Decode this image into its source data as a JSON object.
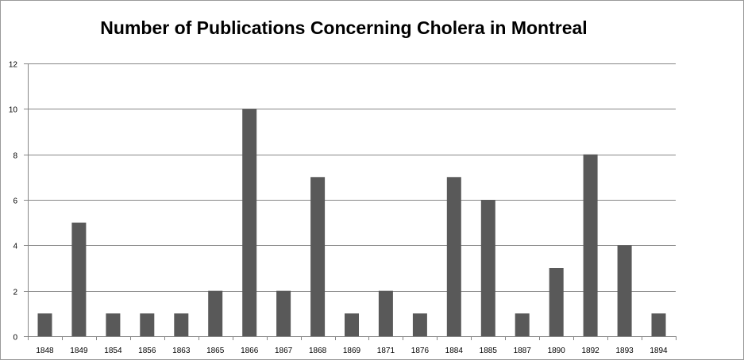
{
  "chart_data": {
    "type": "bar",
    "title": "Number of Publications Concerning Cholera in Montreal",
    "xlabel": "",
    "ylabel": "",
    "categories": [
      "1848",
      "1849",
      "1854",
      "1856",
      "1863",
      "1865",
      "1866",
      "1867",
      "1868",
      "1869",
      "1871",
      "1876",
      "1884",
      "1885",
      "1887",
      "1890",
      "1892",
      "1893",
      "1894"
    ],
    "values": [
      1,
      5,
      1,
      1,
      1,
      2,
      10,
      2,
      7,
      1,
      2,
      1,
      7,
      6,
      1,
      3,
      8,
      4,
      1
    ],
    "ylim": [
      0,
      12
    ],
    "yticks": [
      0,
      2,
      4,
      6,
      8,
      10,
      12
    ],
    "grid": true,
    "legend": "none",
    "bar_color": "#595959",
    "grid_color": "#868686"
  }
}
